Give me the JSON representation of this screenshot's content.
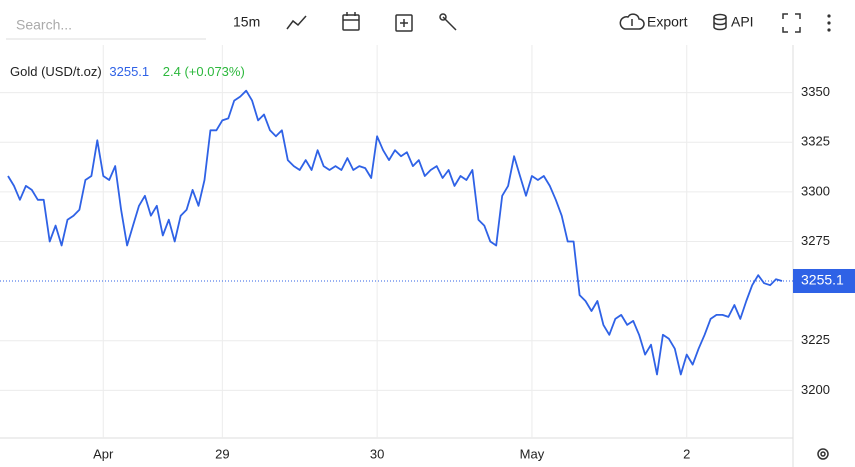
{
  "toolbar": {
    "search_placeholder": "Search...",
    "interval": "15m",
    "export": "Export",
    "api": "API"
  },
  "chart_data": {
    "type": "line",
    "title": "Gold (USD/t.oz)",
    "change_label": "2.4 (+0.073%)",
    "color": "#2f62e6",
    "change_color": "#2db83d",
    "last_color": "#2f62e6",
    "values": [
      3308,
      3303,
      3296,
      3303,
      3301,
      3296,
      3296,
      3275,
      3283,
      3273,
      3286,
      3288,
      3291,
      3306,
      3308,
      3326,
      3308,
      3306,
      3313,
      3291,
      3273,
      3283,
      3293,
      3298,
      3288,
      3293,
      3278,
      3286,
      3275,
      3288,
      3291,
      3301,
      3293,
      3306,
      3331,
      3331,
      3336,
      3337,
      3346,
      3348,
      3351,
      3346,
      3336,
      3339,
      3331,
      3328,
      3331,
      3316,
      3313,
      3311,
      3316,
      3311,
      3321,
      3313,
      3311,
      3313,
      3311,
      3317,
      3311,
      3313,
      3312,
      3307,
      3328,
      3321,
      3316,
      3321,
      3318,
      3320,
      3313,
      3316,
      3308,
      3311,
      3313,
      3307,
      3311,
      3303,
      3308,
      3306,
      3311,
      3286,
      3283,
      3275,
      3273,
      3298,
      3303,
      3318,
      3308,
      3298,
      3308,
      3306,
      3308,
      3303,
      3296,
      3288,
      3275,
      3275,
      3248,
      3245,
      3240,
      3245,
      3233,
      3228,
      3236,
      3238,
      3233,
      3235,
      3228,
      3218,
      3223,
      3208,
      3228,
      3226,
      3221,
      3208,
      3218,
      3213,
      3221,
      3228,
      3236,
      3238,
      3238,
      3237,
      3243,
      3236,
      3245,
      3253,
      3258,
      3254,
      3253,
      3256,
      3255.1
    ],
    "xlim": [
      0,
      130
    ],
    "xticks": [
      {
        "value": 16,
        "label": "Apr"
      },
      {
        "value": 36,
        "label": "29"
      },
      {
        "value": 62,
        "label": "30"
      },
      {
        "value": 88,
        "label": "May"
      },
      {
        "value": 114,
        "label": "2"
      }
    ],
    "ylim": [
      3176,
      3374
    ],
    "yticks": [
      3200,
      3225,
      3275,
      3300,
      3325,
      3350
    ],
    "grid": true
  }
}
